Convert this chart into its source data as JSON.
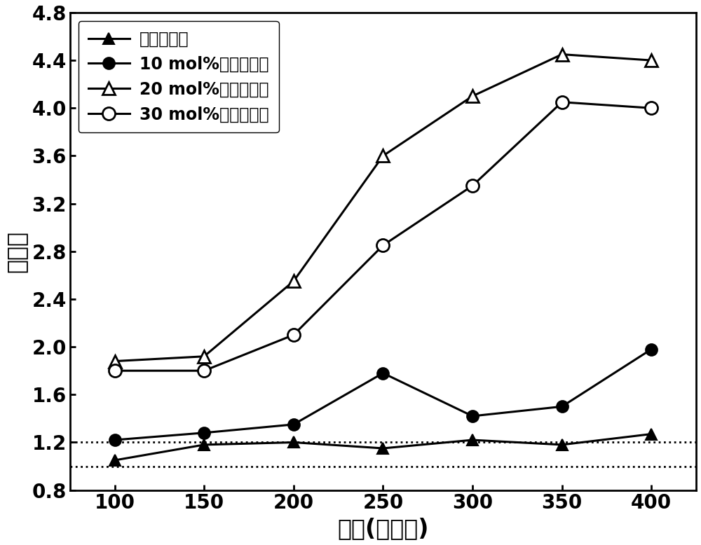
{
  "x": [
    100,
    150,
    200,
    250,
    300,
    350,
    400
  ],
  "series": [
    {
      "label": "纯二氧化锡",
      "values": [
        1.05,
        1.18,
        1.2,
        1.15,
        1.22,
        1.18,
        1.27
      ],
      "marker": "^",
      "fillstyle": "full",
      "markersize": 12,
      "linewidth": 2.2
    },
    {
      "label": "10 mol%锅二氧化锡",
      "values": [
        1.22,
        1.28,
        1.35,
        1.78,
        1.42,
        1.5,
        1.98
      ],
      "marker": "o",
      "fillstyle": "full",
      "markersize": 12,
      "linewidth": 2.2
    },
    {
      "label": "20 mol%锅二氧化锡",
      "values": [
        1.88,
        1.92,
        2.55,
        3.6,
        4.1,
        4.45,
        4.4
      ],
      "marker": "^",
      "fillstyle": "none",
      "markersize": 13,
      "linewidth": 2.2
    },
    {
      "label": "30 mol%锅二氧化锡",
      "values": [
        1.8,
        1.8,
        2.1,
        2.85,
        3.35,
        4.05,
        4.0
      ],
      "marker": "o",
      "fillstyle": "none",
      "markersize": 13,
      "linewidth": 2.2
    }
  ],
  "xlabel": "温度(摄氏度)",
  "ylabel": "灵敏度",
  "xlim": [
    75,
    425
  ],
  "ylim": [
    0.8,
    4.8
  ],
  "yticks": [
    0.8,
    1.2,
    1.6,
    2.0,
    2.4,
    2.8,
    3.2,
    3.6,
    4.0,
    4.4,
    4.8
  ],
  "xticks": [
    100,
    150,
    200,
    250,
    300,
    350,
    400
  ],
  "hlines": [
    1.0,
    1.2
  ],
  "background_color": "#ffffff",
  "xlabel_fontsize": 24,
  "ylabel_fontsize": 24,
  "tick_fontsize": 20,
  "legend_fontsize": 17
}
